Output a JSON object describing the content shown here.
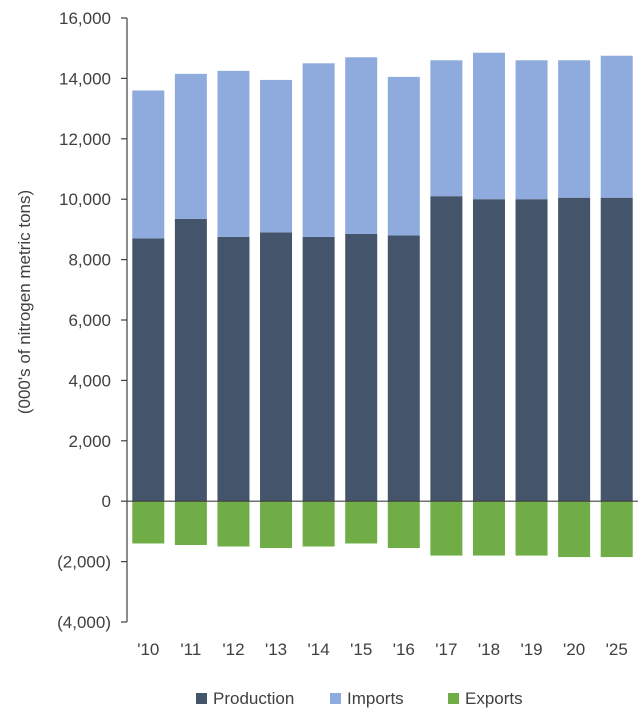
{
  "chart_data": {
    "type": "bar",
    "stacked": true,
    "categories": [
      "'10",
      "'11",
      "'12",
      "'13",
      "'14",
      "'15",
      "'16",
      "'17",
      "'18",
      "'19",
      "'20",
      "'25"
    ],
    "series": [
      {
        "name": "Production",
        "color": "#44546A",
        "values": [
          8700,
          9350,
          8750,
          8900,
          8750,
          8850,
          8800,
          10100,
          10000,
          10000,
          10050,
          10050
        ]
      },
      {
        "name": "Imports",
        "color": "#8FAADC",
        "values": [
          4900,
          4800,
          5500,
          5050,
          5750,
          5850,
          5250,
          4500,
          4850,
          4600,
          4550,
          4700
        ]
      },
      {
        "name": "Exports",
        "color": "#70AD47",
        "values": [
          -1400,
          -1450,
          -1500,
          -1550,
          -1500,
          -1400,
          -1550,
          -1800,
          -1800,
          -1800,
          -1850,
          -1850
        ]
      }
    ],
    "ylabel": "(000's of nitrogen metric tons)",
    "ylim": [
      -4000,
      16000
    ],
    "yticks": [
      {
        "value": 16000,
        "label": "16,000"
      },
      {
        "value": 14000,
        "label": "14,000"
      },
      {
        "value": 12000,
        "label": "12,000"
      },
      {
        "value": 10000,
        "label": "10,000"
      },
      {
        "value": 8000,
        "label": "8,000"
      },
      {
        "value": 6000,
        "label": "6,000"
      },
      {
        "value": 4000,
        "label": "4,000"
      },
      {
        "value": 2000,
        "label": "2,000"
      },
      {
        "value": 0,
        "label": "0"
      },
      {
        "value": -2000,
        "label": "(2,000)"
      },
      {
        "value": -4000,
        "label": "(4,000)"
      }
    ],
    "legend_position": "bottom",
    "grid": false
  }
}
